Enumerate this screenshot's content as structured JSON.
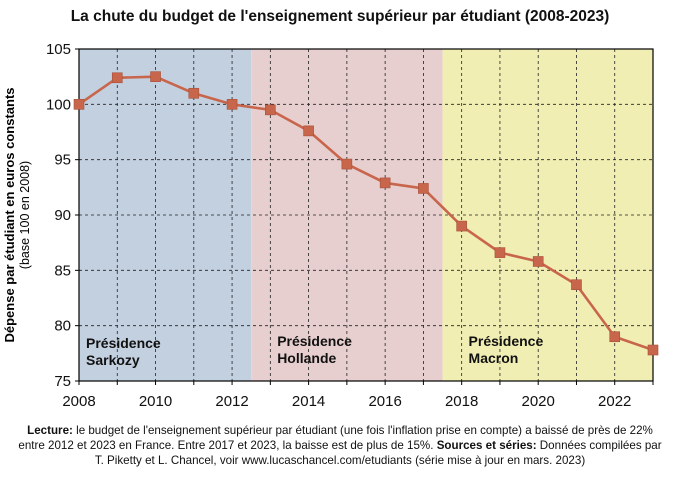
{
  "chart_data": {
    "type": "line",
    "title": "La chute du budget de l'enseignement supérieur par étudiant (2008-2023)",
    "ylabel_main": "Dépense par étudiant en euros constants",
    "ylabel_sub": "(base 100 en 2008)",
    "xlim": [
      2008,
      2023
    ],
    "ylim": [
      75,
      105
    ],
    "x_ticks": [
      2008,
      2010,
      2012,
      2014,
      2016,
      2018,
      2020,
      2022
    ],
    "y_ticks": [
      75,
      80,
      85,
      90,
      95,
      100,
      105
    ],
    "grid": true,
    "series": [
      {
        "x": [
          2008,
          2009,
          2010,
          2011,
          2012,
          2013,
          2014,
          2015,
          2016,
          2017,
          2018,
          2019,
          2020,
          2021,
          2022,
          2023
        ],
        "values": [
          100.0,
          102.4,
          102.5,
          101.0,
          100.0,
          99.5,
          97.6,
          94.6,
          92.9,
          92.4,
          89.0,
          86.6,
          85.8,
          83.7,
          79.0,
          77.8
        ],
        "color": "#c8664c"
      }
    ],
    "regions": [
      {
        "label_line1": "Présidence",
        "label_line2": "Sarkozy",
        "x0": 2008,
        "x1": 2012.5,
        "color": "#c3d0e0"
      },
      {
        "label_line1": "Présidence",
        "label_line2": "Hollande",
        "x0": 2012.5,
        "x1": 2017.5,
        "color": "#e8cfcf"
      },
      {
        "label_line1": "Présidence",
        "label_line2": "Macron",
        "x0": 2017.5,
        "x1": 2023,
        "color": "#f1eeb4"
      }
    ]
  },
  "caption": {
    "lecture_label": "Lecture:",
    "lecture_text": " le budget de l'enseignement supérieur par étudiant (une fois l'inflation prise en compte) a baissé de près de 22% entre 2012 et 2023 en France. Entre 2017 et 2023, la baisse est de plus de 15%. ",
    "sources_label": "Sources et séries:",
    "sources_text": " Données compilées par T. Piketty et L. Chancel, voir www.lucaschancel.com/etudiants (série mise à jour en mars. 2023)"
  }
}
